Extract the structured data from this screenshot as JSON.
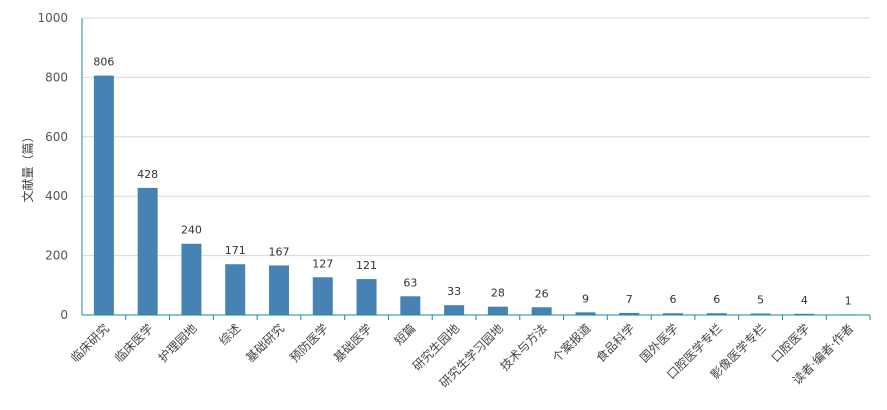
{
  "chart_data": {
    "type": "bar",
    "ylabel": "文献量（篇）",
    "ylim": [
      0,
      1000
    ],
    "yticks": [
      0,
      200,
      400,
      600,
      800,
      1000
    ],
    "grid": true,
    "bar_color": "#4682b4",
    "axis_color": "#1a8a9a",
    "categories": [
      "临床研究",
      "临床医学",
      "护理园地",
      "综述",
      "基础研究",
      "预防医学",
      "基础医学",
      "短篇",
      "研究生园地",
      "研究生学习园地",
      "技术与方法",
      "个案报道",
      "食品科学",
      "国外医学",
      "口腔医学专栏",
      "影像医学专栏",
      "口腔医学",
      "读者·编者·作者"
    ],
    "values": [
      806,
      428,
      240,
      171,
      167,
      127,
      121,
      63,
      33,
      28,
      26,
      9,
      7,
      6,
      6,
      5,
      4,
      1
    ]
  }
}
